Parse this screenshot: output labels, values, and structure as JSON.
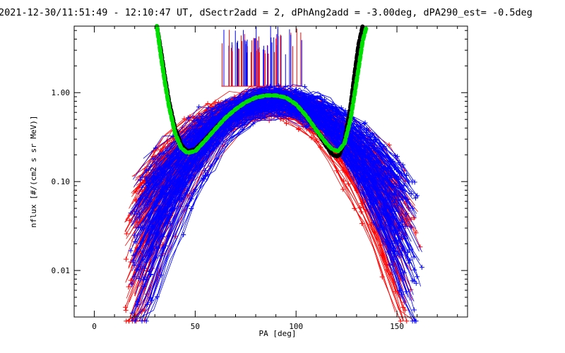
{
  "chart_data": {
    "type": "line",
    "title": "2021-12-30/11:51:49 - 12:10:47 UT, dSectr2add = 2, dPhAng2add = -3.00deg, dPA290_est=  -0.5deg",
    "xlabel": "PA [deg]",
    "ylabel": "nflux [#/(cm2 s sr MeV)]",
    "xlim": [
      -10,
      185
    ],
    "ylim": [
      0.003,
      5.6
    ],
    "yscale": "log",
    "grid": false,
    "x_ticks": [
      0,
      50,
      100,
      150
    ],
    "x_tick_labels": [
      "0",
      "50",
      "100",
      "150"
    ],
    "y_ticks": [
      0.01,
      0.1,
      1.0
    ],
    "y_tick_labels": [
      "0.01",
      "0.10",
      "1.00"
    ],
    "series": [
      {
        "color": "#ff0000",
        "marker": "plus",
        "note": "many overlapping traces (first half of sweeps)",
        "peak_x": 87,
        "peak_y": 0.9,
        "x_range": [
          15,
          162
        ]
      },
      {
        "color": "#0000ff",
        "marker": "plus",
        "note": "many overlapping traces (second half of sweeps)",
        "peak_x": 90,
        "peak_y": 0.95,
        "x_range": [
          18,
          163
        ]
      },
      {
        "color": "#000000",
        "style": "thick dashed",
        "x": [
          31,
          33,
          35,
          37,
          40,
          43,
          46,
          50,
          55,
          60,
          65,
          70,
          75,
          80,
          85,
          90,
          95,
          100,
          105,
          110,
          115,
          118,
          121,
          124,
          127,
          129,
          131,
          133
        ],
        "y": [
          5.6,
          3.0,
          1.5,
          0.8,
          0.4,
          0.26,
          0.22,
          0.23,
          0.3,
          0.4,
          0.52,
          0.65,
          0.78,
          0.88,
          0.93,
          0.93,
          0.88,
          0.74,
          0.55,
          0.38,
          0.25,
          0.2,
          0.19,
          0.28,
          0.7,
          1.6,
          3.5,
          5.6
        ]
      },
      {
        "color": "#00e000",
        "style": "thick dashed",
        "x": [
          31,
          33,
          35,
          37,
          40,
          43,
          46,
          50,
          55,
          60,
          65,
          70,
          75,
          80,
          85,
          90,
          95,
          100,
          105,
          110,
          115,
          118,
          121,
          124,
          127,
          129,
          131,
          133,
          135
        ],
        "y": [
          5.6,
          2.6,
          1.3,
          0.7,
          0.35,
          0.24,
          0.21,
          0.22,
          0.29,
          0.39,
          0.52,
          0.65,
          0.78,
          0.88,
          0.93,
          0.93,
          0.88,
          0.74,
          0.55,
          0.38,
          0.27,
          0.23,
          0.22,
          0.27,
          0.5,
          0.95,
          1.9,
          3.8,
          5.6
        ]
      }
    ],
    "annotations": [
      "vertical line spikes above y=1.2 between PA 63 and 103"
    ]
  }
}
